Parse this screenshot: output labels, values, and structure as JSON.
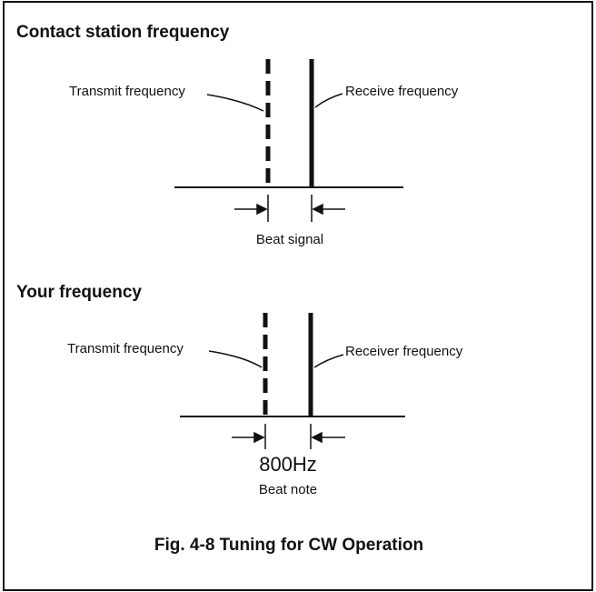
{
  "sections": [
    {
      "title": "Contact station frequency",
      "transmit_label": "Transmit frequency",
      "receive_label": "Receive frequency",
      "offset_label": "Beat signal"
    },
    {
      "title": "Your frequency",
      "transmit_label": "Transmit frequency",
      "receive_label": "Receiver frequency",
      "offset_value": "800Hz",
      "offset_label": "Beat note"
    }
  ],
  "caption": "Fig. 4-8 Tuning for CW Operation"
}
